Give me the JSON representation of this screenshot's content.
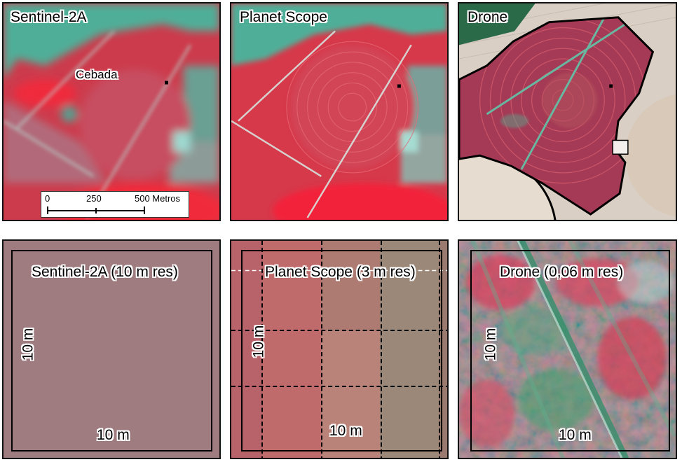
{
  "top_row": {
    "sentinel": {
      "title": "Sentinel-2A",
      "field_label": "Cebada"
    },
    "planet": {
      "title": "Planet Scope"
    },
    "drone": {
      "title": "Drone"
    }
  },
  "scalebar": {
    "tick_0": "0",
    "tick_250": "250",
    "tick_500": "500 Metros"
  },
  "bottom_row": {
    "sentinel": {
      "title": "Sentinel-2A (10 m res)",
      "side_label": "10 m",
      "bottom_label": "10 m"
    },
    "planet": {
      "title": "Planet Scope (3 m res)",
      "side_label": "10 m",
      "bottom_label": "10 m"
    },
    "drone": {
      "title": "Drone (0,06 m res)",
      "side_label": "10 m",
      "bottom_label": "10 m"
    }
  }
}
